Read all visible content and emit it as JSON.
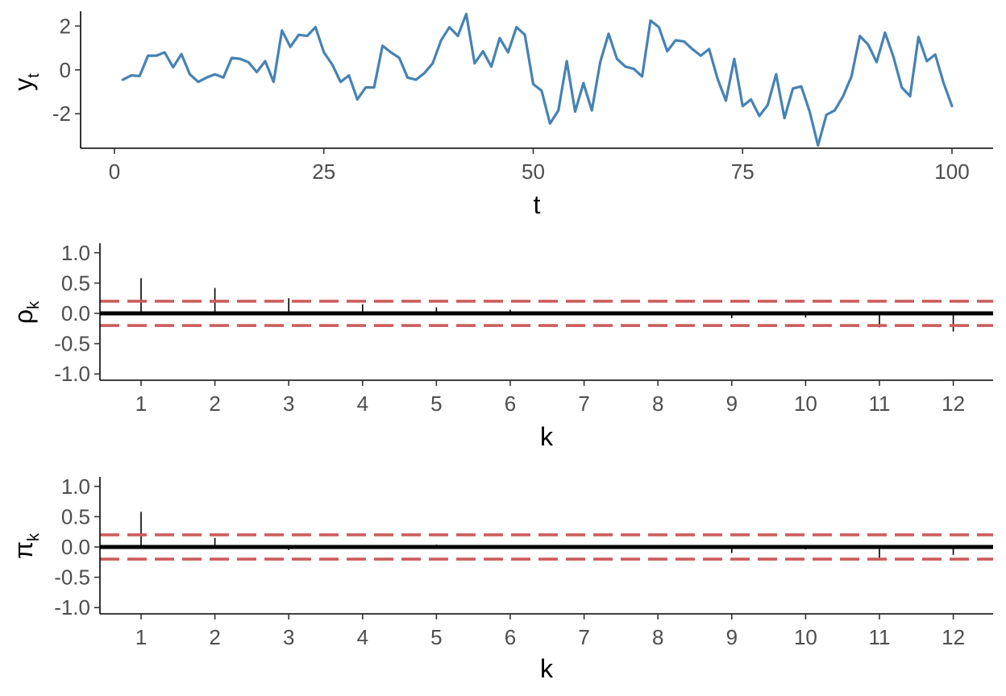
{
  "colors": {
    "series": "#4682B4",
    "band": "#CD5C5C",
    "axis": "#000000",
    "tick_text": "#4D4D4D",
    "background": "#FFFFFF"
  },
  "chart_data": [
    {
      "type": "line",
      "xlabel": "t",
      "ylabel": "y",
      "ylabel_subscript": "t",
      "xlim": [
        0,
        100
      ],
      "ylim": [
        -3.5,
        2.6
      ],
      "xticks": [
        0,
        25,
        50,
        75,
        100
      ],
      "xtick_labels": [
        "0",
        "25",
        "50",
        "75",
        "100"
      ],
      "yticks": [
        -2,
        0,
        2
      ],
      "ytick_labels": [
        "-2",
        "0",
        "2"
      ],
      "x": [
        1,
        2,
        3,
        4,
        5,
        6,
        7,
        8,
        9,
        10,
        11,
        12,
        13,
        14,
        15,
        16,
        17,
        18,
        19,
        20,
        21,
        22,
        23,
        24,
        25,
        26,
        27,
        28,
        29,
        30,
        31,
        32,
        33,
        34,
        35,
        36,
        37,
        38,
        39,
        40,
        41,
        42,
        43,
        44,
        45,
        46,
        47,
        48,
        49,
        50,
        51,
        52,
        53,
        54,
        55,
        56,
        57,
        58,
        59,
        60,
        61,
        62,
        63,
        64,
        65,
        66,
        67,
        68,
        69,
        70,
        71,
        72,
        73,
        74,
        75,
        76,
        77,
        78,
        79,
        80,
        81,
        82,
        83,
        84,
        85,
        86,
        87,
        88,
        89,
        90,
        91,
        92,
        93,
        94,
        95,
        96,
        97,
        98,
        99,
        100
      ],
      "series": [
        {
          "values": [
            -0.45,
            -0.25,
            -0.28,
            0.65,
            0.65,
            0.8,
            0.12,
            0.72,
            -0.2,
            -0.55,
            -0.35,
            -0.2,
            -0.35,
            0.55,
            0.5,
            0.35,
            -0.1,
            0.4,
            -0.55,
            1.8,
            1.05,
            1.6,
            1.55,
            1.95,
            0.8,
            0.25,
            -0.55,
            -0.25,
            -1.35,
            -0.8,
            -0.8,
            1.1,
            0.8,
            0.55,
            -0.35,
            -0.45,
            -0.15,
            0.3,
            1.35,
            1.95,
            1.55,
            2.55,
            0.3,
            0.85,
            0.15,
            1.45,
            0.8,
            1.95,
            1.6,
            -0.65,
            -0.95,
            -2.45,
            -1.85,
            0.4,
            -1.9,
            -0.6,
            -1.85,
            0.35,
            1.65,
            0.5,
            0.15,
            0.05,
            -0.3,
            2.25,
            1.95,
            0.85,
            1.35,
            1.3,
            0.95,
            0.65,
            0.95,
            -0.4,
            -1.4,
            0.5,
            -1.65,
            -1.35,
            -2.1,
            -1.6,
            -0.2,
            -2.2,
            -0.85,
            -0.75,
            -1.9,
            -3.45,
            -2.05,
            -1.85,
            -1.2,
            -0.3,
            1.55,
            1.15,
            0.35,
            1.7,
            0.6,
            -0.8,
            -1.2,
            1.5,
            0.4,
            0.7,
            -0.6,
            -1.65
          ]
        }
      ]
    },
    {
      "type": "bar",
      "subtype": "acf",
      "xlabel": "k",
      "ylabel": "ρ",
      "ylabel_subscript": "k",
      "categories": [
        "1",
        "2",
        "3",
        "4",
        "5",
        "6",
        "7",
        "8",
        "9",
        "10",
        "11",
        "12"
      ],
      "values": [
        0.58,
        0.42,
        0.25,
        0.15,
        0.1,
        0.06,
        0.02,
        0.0,
        -0.08,
        -0.07,
        -0.23,
        -0.3
      ],
      "confidence_band": [
        0.2,
        -0.2
      ],
      "reference_line": 0,
      "ylim": [
        -1.05,
        1.05
      ],
      "yticks": [
        -1,
        -0.5,
        0,
        0.5,
        1
      ],
      "ytick_labels": [
        "-1.0",
        "-0.5",
        "0.0",
        "0.5",
        "1.0"
      ]
    },
    {
      "type": "bar",
      "subtype": "pacf",
      "xlabel": "k",
      "ylabel": "π",
      "ylabel_subscript": "k",
      "categories": [
        "1",
        "2",
        "3",
        "4",
        "5",
        "6",
        "7",
        "8",
        "9",
        "10",
        "11",
        "12"
      ],
      "values": [
        0.58,
        0.15,
        -0.05,
        0.0,
        0.04,
        0.0,
        0.0,
        0.0,
        -0.1,
        -0.04,
        -0.18,
        -0.13
      ],
      "confidence_band": [
        0.2,
        -0.2
      ],
      "reference_line": 0,
      "ylim": [
        -1.05,
        1.05
      ],
      "yticks": [
        -1,
        -0.5,
        0,
        0.5,
        1
      ],
      "ytick_labels": [
        "-1.0",
        "-0.5",
        "0.0",
        "0.5",
        "1.0"
      ]
    }
  ]
}
